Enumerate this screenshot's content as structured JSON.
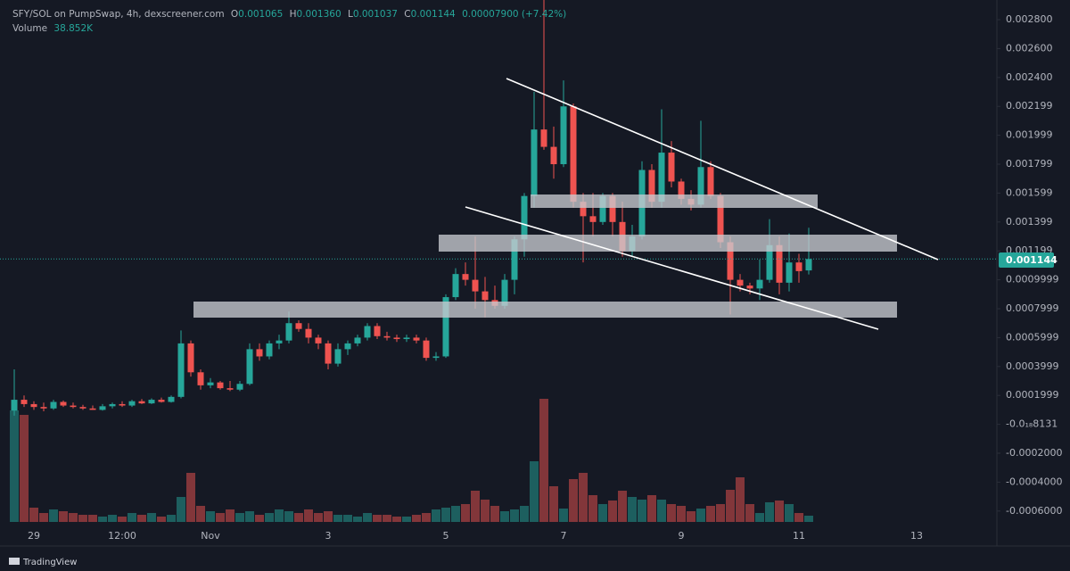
{
  "header": {
    "symbol": "SFY/SOL on PumpSwap, 4h, dexscreener.com",
    "o": "O",
    "open": "0.001065",
    "h": "H",
    "high": "0.001360",
    "l": "L",
    "low": "0.001037",
    "c": "C",
    "close": "0.001144",
    "change": "0.00007900 (+7.42%)",
    "volume_name": "Volume",
    "volume": "38.852K"
  },
  "footer": {
    "logo": "TradingView"
  },
  "chart_data": {
    "type": "candlestick",
    "categories": [
      null,
      null,
      "29",
      null,
      null,
      null,
      null,
      null,
      null,
      null,
      null,
      "12:00",
      null,
      null,
      null,
      null,
      null,
      null,
      null,
      null,
      "Nov",
      null,
      null,
      null,
      null,
      null,
      null,
      null,
      null,
      null,
      null,
      null,
      "3",
      null,
      null,
      null,
      null,
      null,
      null,
      null,
      null,
      null,
      null,
      null,
      "5",
      null,
      null,
      null,
      null,
      null,
      null,
      null,
      null,
      null,
      null,
      null,
      "7",
      null,
      null,
      null,
      null,
      null,
      null,
      null,
      null,
      null,
      null,
      null,
      "9",
      null,
      null,
      null,
      null,
      null,
      null,
      null,
      null,
      null,
      null,
      null,
      "11",
      null,
      null,
      null,
      null,
      null,
      null,
      null,
      null,
      null,
      null,
      null,
      "13"
    ],
    "open": [
      9.5e-05,
      0.00017,
      0.00014,
      0.00012,
      0.00011,
      0.000155,
      0.00013,
      0.00012,
      0.00011,
      0.0001,
      0.000125,
      0.00014,
      0.00013,
      0.00016,
      0.000145,
      0.00017,
      0.000155,
      0.00019,
      0.00056,
      0.00036,
      0.00027,
      0.00029,
      0.00025,
      0.00024,
      0.00028,
      0.00052,
      0.00047,
      0.00056,
      0.00058,
      0.0007,
      0.00066,
      0.0006,
      0.00056,
      0.00042,
      0.00052,
      0.00056,
      0.0006,
      0.00068,
      0.00061,
      0.0006,
      0.00059,
      0.0006,
      0.00058,
      0.00046,
      0.00047,
      0.00088,
      0.00104,
      0.001,
      0.00092,
      0.00086,
      0.00082,
      0.001,
      0.00128,
      0.00158,
      0.00204,
      0.00192,
      0.0018,
      0.0022,
      0.00154,
      0.00144,
      0.0014,
      0.00158,
      0.0014,
      0.0012,
      0.0013,
      0.00176,
      0.00154,
      0.00188,
      0.00168,
      0.00156,
      0.00152,
      0.00178,
      0.00158,
      0.00126,
      0.001,
      0.00096,
      0.00094,
      0.001,
      0.00124,
      0.00098,
      0.00112,
      0.001065,
      null,
      null,
      null,
      null,
      null,
      null,
      null,
      null,
      null,
      null,
      null
    ],
    "high": [
      0.00038,
      0.0002,
      0.00016,
      0.00015,
      0.00017,
      0.000165,
      0.00015,
      0.000135,
      0.00013,
      0.00014,
      0.00015,
      0.00016,
      0.00017,
      0.000175,
      0.00018,
      0.000185,
      0.0002,
      0.00065,
      0.00058,
      0.00038,
      0.00032,
      0.0003,
      0.0003,
      0.0003,
      0.00056,
      0.00056,
      0.00058,
      0.00062,
      0.00078,
      0.00072,
      0.0007,
      0.00062,
      0.00058,
      0.00056,
      0.00058,
      0.00062,
      0.0007,
      0.0007,
      0.00064,
      0.00062,
      0.00062,
      0.00062,
      0.0006,
      0.0005,
      0.0009,
      0.00108,
      0.00112,
      0.0013,
      0.00102,
      0.00096,
      0.00104,
      0.0013,
      0.0016,
      0.0023,
      0.00294,
      0.00206,
      0.00238,
      0.00222,
      0.0016,
      0.0016,
      0.0016,
      0.0016,
      0.00154,
      0.00138,
      0.00182,
      0.0018,
      0.00218,
      0.00196,
      0.0017,
      0.00162,
      0.0021,
      0.00182,
      0.0016,
      0.0013,
      0.00104,
      0.00098,
      0.00114,
      0.00142,
      0.0013,
      0.00132,
      0.00118,
      0.00136,
      null,
      null,
      null,
      null,
      null,
      null,
      null,
      null,
      null,
      null,
      null
    ],
    "low": [
      6e-05,
      0.00012,
      0.0001,
      9e-05,
      0.0001,
      0.00012,
      0.00011,
      0.0001,
      0.0001,
      9.5e-05,
      0.00011,
      0.00012,
      0.00012,
      0.00014,
      0.00014,
      0.00015,
      0.00015,
      0.00018,
      0.00033,
      0.00024,
      0.00025,
      0.00024,
      0.00023,
      0.00023,
      0.00027,
      0.00044,
      0.00045,
      0.00052,
      0.00056,
      0.00064,
      0.00056,
      0.00052,
      0.00038,
      0.0004,
      0.00048,
      0.00054,
      0.00058,
      0.00059,
      0.00058,
      0.00057,
      0.00057,
      0.00056,
      0.00044,
      0.00044,
      0.00046,
      0.00086,
      0.00096,
      0.0008,
      0.00074,
      0.0008,
      0.0008,
      0.0009,
      0.00116,
      0.0015,
      0.0019,
      0.0017,
      0.00178,
      0.0015,
      0.00112,
      0.0013,
      0.00138,
      0.0013,
      0.00116,
      0.00116,
      0.00128,
      0.0015,
      0.0015,
      0.00164,
      0.00152,
      0.00148,
      0.0015,
      0.00156,
      0.00122,
      0.00076,
      0.00092,
      0.0009,
      0.00086,
      0.00098,
      0.0009,
      0.00092,
      0.00098,
      0.001037,
      null,
      null,
      null,
      null,
      null,
      null,
      null,
      null,
      null,
      null,
      null
    ],
    "close": [
      0.00017,
      0.00014,
      0.00012,
      0.00011,
      0.000155,
      0.00013,
      0.00012,
      0.00011,
      0.0001,
      0.000125,
      0.00014,
      0.00013,
      0.00016,
      0.000145,
      0.00017,
      0.000155,
      0.00019,
      0.00056,
      0.00036,
      0.00027,
      0.00029,
      0.00025,
      0.00024,
      0.00028,
      0.00052,
      0.00047,
      0.00056,
      0.00058,
      0.0007,
      0.00066,
      0.0006,
      0.00056,
      0.00042,
      0.00052,
      0.00056,
      0.0006,
      0.00068,
      0.00061,
      0.0006,
      0.00059,
      0.0006,
      0.00058,
      0.00046,
      0.00047,
      0.00088,
      0.00104,
      0.001,
      0.00092,
      0.00086,
      0.00082,
      0.001,
      0.00128,
      0.00158,
      0.00204,
      0.00192,
      0.0018,
      0.0022,
      0.00154,
      0.00144,
      0.0014,
      0.00158,
      0.0014,
      0.0012,
      0.0013,
      0.00176,
      0.00154,
      0.00188,
      0.00168,
      0.00156,
      0.00152,
      0.00178,
      0.00158,
      0.00126,
      0.001,
      0.00096,
      0.00094,
      0.001,
      0.00124,
      0.00098,
      0.00112,
      0.00106,
      0.001144,
      null,
      null,
      null,
      null,
      null,
      null,
      null,
      null,
      null,
      null,
      null
    ],
    "volume": [
      693750,
      666000,
      88800,
      55500,
      77700,
      66600,
      55500,
      44400,
      44400,
      33300,
      44400,
      33300,
      55500,
      44400,
      55500,
      33300,
      44400,
      155400,
      305250,
      99900,
      66600,
      55500,
      77700,
      55500,
      66600,
      44400,
      55500,
      77700,
      66600,
      55500,
      77700,
      55500,
      66600,
      44400,
      44400,
      33300,
      55500,
      44400,
      44400,
      33300,
      33300,
      44400,
      55500,
      77700,
      88800,
      99900,
      111000,
      194250,
      138750,
      99900,
      66600,
      77700,
      99900,
      377400,
      765900,
      222000,
      83250,
      266400,
      305250,
      166500,
      111000,
      133200,
      194250,
      155400,
      138750,
      166500,
      138750,
      111000,
      99900,
      66600,
      83250,
      99900,
      111000,
      199800,
      277500,
      111000,
      55500,
      122100,
      133200,
      111000,
      55500,
      38852,
      null,
      null,
      null,
      null,
      null,
      null,
      null,
      null,
      null,
      null,
      null
    ],
    "up_color": "#26a69a",
    "down_color": "#ef5350",
    "ylim": [
      -0.000737,
      0.002936
    ],
    "yticks": [
      {
        "value": 0.0028,
        "label": "0.002800"
      },
      {
        "value": 0.0026,
        "label": "0.002600"
      },
      {
        "value": 0.0024,
        "label": "0.002400"
      },
      {
        "value": 0.0022,
        "label": "0.002199"
      },
      {
        "value": 0.002,
        "label": "0.001999"
      },
      {
        "value": 0.0018,
        "label": "0.001799"
      },
      {
        "value": 0.0016,
        "label": "0.001599"
      },
      {
        "value": 0.0014,
        "label": "0.001399"
      },
      {
        "value": 0.0012,
        "label": "0.001199"
      },
      {
        "value": 0.001,
        "label": "0.0009999"
      },
      {
        "value": 0.0008,
        "label": "0.0007999"
      },
      {
        "value": 0.0006,
        "label": "0.0005999"
      },
      {
        "value": 0.0004,
        "label": "0.0003999"
      },
      {
        "value": 0.0002,
        "label": "0.0001999"
      },
      {
        "value": 0,
        "label": "-0.0₁₈8131"
      },
      {
        "value": -0.0002,
        "label": "-0.0002000"
      },
      {
        "value": -0.0004,
        "label": "-0.0004000"
      },
      {
        "value": -0.0006,
        "label": "-0.0006000"
      }
    ],
    "grid": false
  }
}
